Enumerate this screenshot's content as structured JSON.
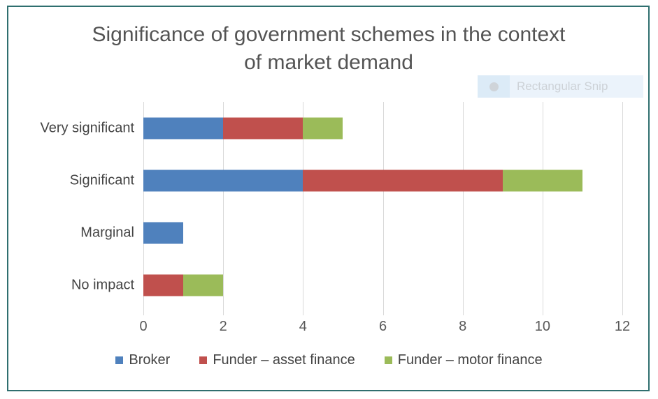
{
  "snip_tooltip": {
    "label": "Rectangular Snip"
  },
  "chart_data": {
    "type": "bar",
    "orientation": "horizontal",
    "stacked": true,
    "title": "Significance of government schemes in the context of market demand",
    "categories": [
      "Very significant",
      "Significant",
      "Marginal",
      "No impact"
    ],
    "series": [
      {
        "name": "Broker",
        "color": "#4F81BD",
        "values": [
          2,
          4,
          1,
          0
        ]
      },
      {
        "name": "Funder – asset finance",
        "color": "#C0504D",
        "values": [
          2,
          5,
          0,
          1
        ]
      },
      {
        "name": "Funder – motor finance",
        "color": "#9BBB59",
        "values": [
          1,
          2,
          0,
          1
        ]
      }
    ],
    "xlabel": "",
    "ylabel": "",
    "xlim": [
      0,
      12
    ],
    "x_ticks": [
      0,
      2,
      4,
      6,
      8,
      10,
      12
    ],
    "grid": "vertical",
    "legend_position": "bottom",
    "totals_by_category": [
      5,
      11,
      1,
      2
    ]
  },
  "style": {
    "frame_border_color": "#2F6F6F",
    "gridline_color": "#D9D9D9",
    "title_color": "#545454",
    "axis_label_color": "#595959",
    "tooltip_bg": "#EBF3FB",
    "tooltip_icon_bg": "#DCEBF7",
    "tooltip_text_color": "#CDD2D7"
  }
}
